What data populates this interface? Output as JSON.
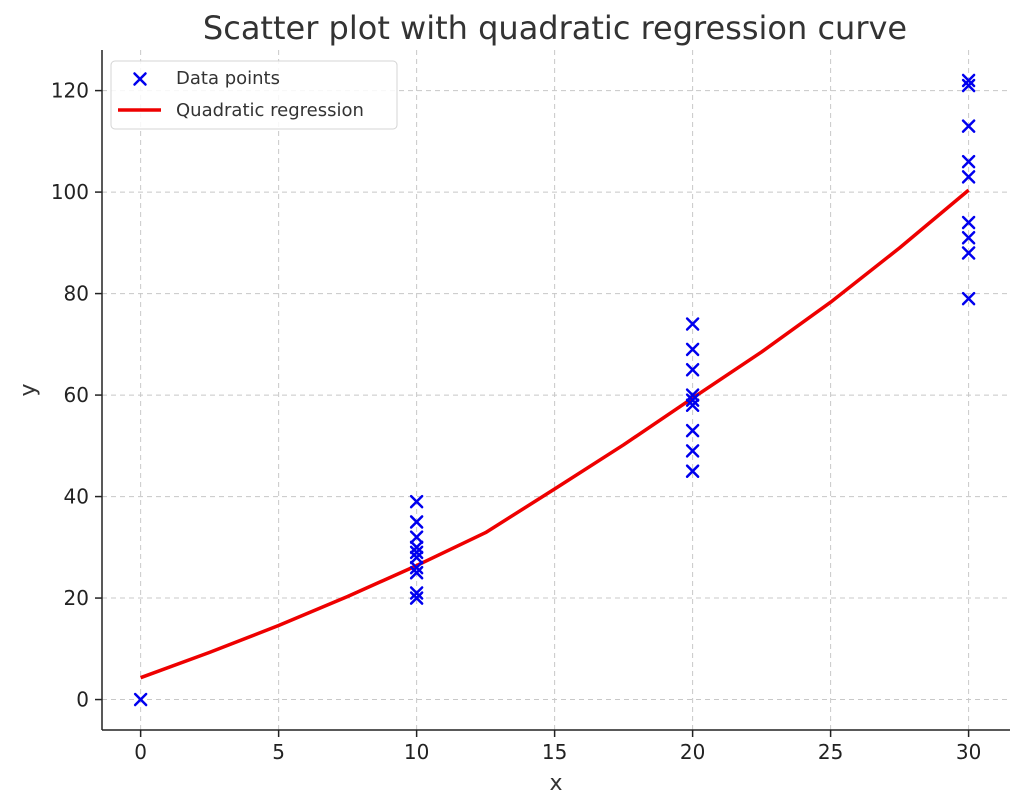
{
  "chart_data": {
    "type": "scatter",
    "title": "Scatter plot with quadratic regression curve",
    "xlabel": "x",
    "ylabel": "y",
    "xlim": [
      -1.4,
      31.5
    ],
    "ylim": [
      -6,
      128
    ],
    "xticks": [
      0,
      5,
      10,
      15,
      20,
      25,
      30
    ],
    "yticks": [
      0,
      20,
      40,
      60,
      80,
      100,
      120
    ],
    "grid": true,
    "legend_position": "top-left",
    "series": [
      {
        "name": "Data points",
        "kind": "scatter",
        "marker": "x",
        "color": "#0000ee",
        "points": [
          {
            "x": 0,
            "y": 0
          },
          {
            "x": 10,
            "y": 20
          },
          {
            "x": 10,
            "y": 21
          },
          {
            "x": 10,
            "y": 25
          },
          {
            "x": 10,
            "y": 26
          },
          {
            "x": 10,
            "y": 28
          },
          {
            "x": 10,
            "y": 29
          },
          {
            "x": 10,
            "y": 30
          },
          {
            "x": 10,
            "y": 32
          },
          {
            "x": 10,
            "y": 35
          },
          {
            "x": 10,
            "y": 39
          },
          {
            "x": 20,
            "y": 45
          },
          {
            "x": 20,
            "y": 49
          },
          {
            "x": 20,
            "y": 53
          },
          {
            "x": 20,
            "y": 58
          },
          {
            "x": 20,
            "y": 59
          },
          {
            "x": 20,
            "y": 60
          },
          {
            "x": 20,
            "y": 65
          },
          {
            "x": 20,
            "y": 69
          },
          {
            "x": 20,
            "y": 74
          },
          {
            "x": 30,
            "y": 79
          },
          {
            "x": 30,
            "y": 88
          },
          {
            "x": 30,
            "y": 91
          },
          {
            "x": 30,
            "y": 94
          },
          {
            "x": 30,
            "y": 103
          },
          {
            "x": 30,
            "y": 106
          },
          {
            "x": 30,
            "y": 113
          },
          {
            "x": 30,
            "y": 121
          },
          {
            "x": 30,
            "y": 122
          }
        ]
      },
      {
        "name": "Quadratic regression",
        "kind": "line",
        "color": "#ee0000",
        "x": [
          0,
          2.5,
          5,
          7.5,
          10,
          12.5,
          15,
          17.5,
          20,
          22.5,
          25,
          27.5,
          30
        ],
        "y": [
          4.3,
          9.3,
          14.6,
          20.3,
          26.4,
          32.9,
          41.5,
          50.2,
          59.4,
          68.5,
          78.3,
          89,
          100.4
        ]
      }
    ]
  }
}
